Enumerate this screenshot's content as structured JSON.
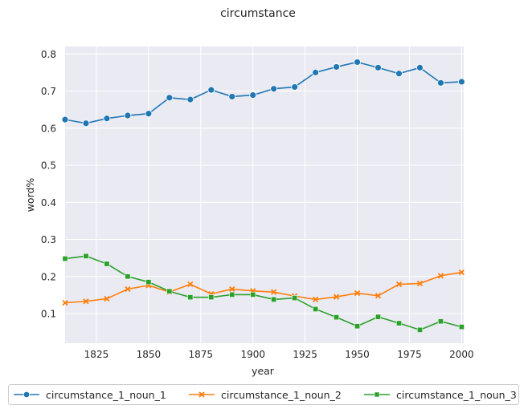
{
  "chart_data": {
    "type": "line",
    "title": "circumstance",
    "xlabel": "year",
    "ylabel": "word%",
    "xlim": [
      1810,
      2001
    ],
    "ylim": [
      0.02,
      0.82
    ],
    "xticks": [
      1825,
      1850,
      1875,
      1900,
      1925,
      1950,
      1975,
      2000
    ],
    "yticks": [
      0.1,
      0.2,
      0.3,
      0.4,
      0.5,
      0.6,
      0.7,
      0.8
    ],
    "grid": true,
    "legend_position": "bottom",
    "x": [
      1810,
      1820,
      1830,
      1840,
      1850,
      1860,
      1870,
      1880,
      1890,
      1900,
      1910,
      1920,
      1930,
      1940,
      1950,
      1960,
      1970,
      1980,
      1990,
      2000
    ],
    "series": [
      {
        "name": "circumstance_1_noun_1",
        "color": "#1f77b4",
        "marker": "circle",
        "values": [
          0.623,
          0.613,
          0.626,
          0.634,
          0.639,
          0.682,
          0.677,
          0.703,
          0.685,
          0.689,
          0.706,
          0.711,
          0.75,
          0.765,
          0.778,
          0.763,
          0.747,
          0.763,
          0.722,
          0.725
        ]
      },
      {
        "name": "circumstance_1_noun_2",
        "color": "#ff7f0e",
        "marker": "x",
        "values": [
          0.129,
          0.133,
          0.14,
          0.166,
          0.176,
          0.158,
          0.179,
          0.153,
          0.166,
          0.161,
          0.158,
          0.147,
          0.138,
          0.145,
          0.155,
          0.148,
          0.179,
          0.181,
          0.202,
          0.211
        ]
      },
      {
        "name": "circumstance_1_noun_3",
        "color": "#2ca02c",
        "marker": "square",
        "values": [
          0.248,
          0.255,
          0.234,
          0.2,
          0.185,
          0.16,
          0.144,
          0.144,
          0.151,
          0.151,
          0.138,
          0.142,
          0.112,
          0.09,
          0.066,
          0.091,
          0.074,
          0.056,
          0.079,
          0.064
        ]
      }
    ]
  }
}
